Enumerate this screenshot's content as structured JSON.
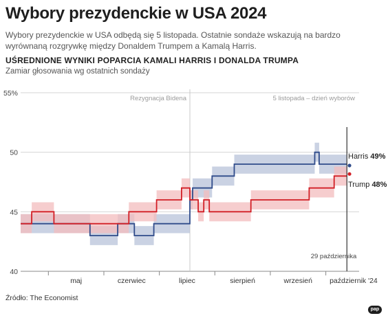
{
  "header": {
    "title": "Wybory prezydenckie w USA 2024",
    "lead": "Wybory prezydenckie w USA odbędą się 5 listopada. Ostatnie sondaże wskazują na bardzo wyrównaną rozgrywkę między Donaldem Trumpem a Kamalą Harris.",
    "subtitle": "UŚREDNIONE WYNIKI POPARCIA KAMALI HARRIS I DONALDA TRUMPA",
    "subsubtitle": "Zamiar głosowania wg ostatnich sondaży"
  },
  "footer": {
    "source": "Źródło: The Economist",
    "logo": "pap"
  },
  "chart_data": {
    "type": "line",
    "ylim": [
      40,
      55
    ],
    "yticks": [
      40,
      45,
      50,
      55
    ],
    "ytick_labels": [
      "40",
      "45",
      "50",
      "55%"
    ],
    "xlim": [
      0,
      6.1
    ],
    "months": [
      {
        "label": "maj",
        "center": 1.0
      },
      {
        "label": "czerwiec",
        "center": 2.0
      },
      {
        "label": "lipiec",
        "center": 3.0
      },
      {
        "label": "sierpień",
        "center": 4.0
      },
      {
        "label": "wrzesień",
        "center": 5.0
      },
      {
        "label": "październik '24",
        "center": 6.0
      }
    ],
    "month_boundaries": [
      0.5,
      1.5,
      2.5,
      3.5,
      4.5,
      5.5
    ],
    "annotations": {
      "biden_dropout": {
        "x": 3.05,
        "label": "Rezygnacja Bidena"
      },
      "election_day": {
        "label": "5 listopada – dzień wyborów"
      },
      "latest_date": {
        "x": 5.88,
        "label": "29 października"
      }
    },
    "series": [
      {
        "name": "Harris",
        "color": "#2f4b8a",
        "band_color": "#b8c3d9",
        "band": 0.8,
        "steps": [
          [
            0.0,
            44.0
          ],
          [
            0.55,
            44.0
          ],
          [
            0.9,
            44.0
          ],
          [
            1.25,
            43.0
          ],
          [
            1.75,
            44.0
          ],
          [
            2.05,
            43.0
          ],
          [
            2.4,
            44.0
          ],
          [
            2.98,
            44.0
          ],
          [
            3.05,
            46.0
          ],
          [
            3.1,
            47.0
          ],
          [
            3.45,
            48.0
          ],
          [
            3.85,
            49.0
          ],
          [
            5.3,
            50.0
          ],
          [
            5.38,
            49.0
          ],
          [
            5.88,
            49.0
          ]
        ],
        "current_value": "49%"
      },
      {
        "name": "Trump",
        "color": "#d21f26",
        "band_color": "#f3bcbe",
        "band": 0.8,
        "steps": [
          [
            0.0,
            44.0
          ],
          [
            0.2,
            45.0
          ],
          [
            0.6,
            44.0
          ],
          [
            1.75,
            44.0
          ],
          [
            1.95,
            45.0
          ],
          [
            2.45,
            46.0
          ],
          [
            2.9,
            47.0
          ],
          [
            2.98,
            47.0
          ],
          [
            3.05,
            46.0
          ],
          [
            3.2,
            45.0
          ],
          [
            3.3,
            46.0
          ],
          [
            3.4,
            45.0
          ],
          [
            3.5,
            45.0
          ],
          [
            3.85,
            45.0
          ],
          [
            4.15,
            46.0
          ],
          [
            5.2,
            47.0
          ],
          [
            5.65,
            48.0
          ],
          [
            5.88,
            48.0
          ]
        ],
        "current_value": "48%"
      }
    ]
  }
}
